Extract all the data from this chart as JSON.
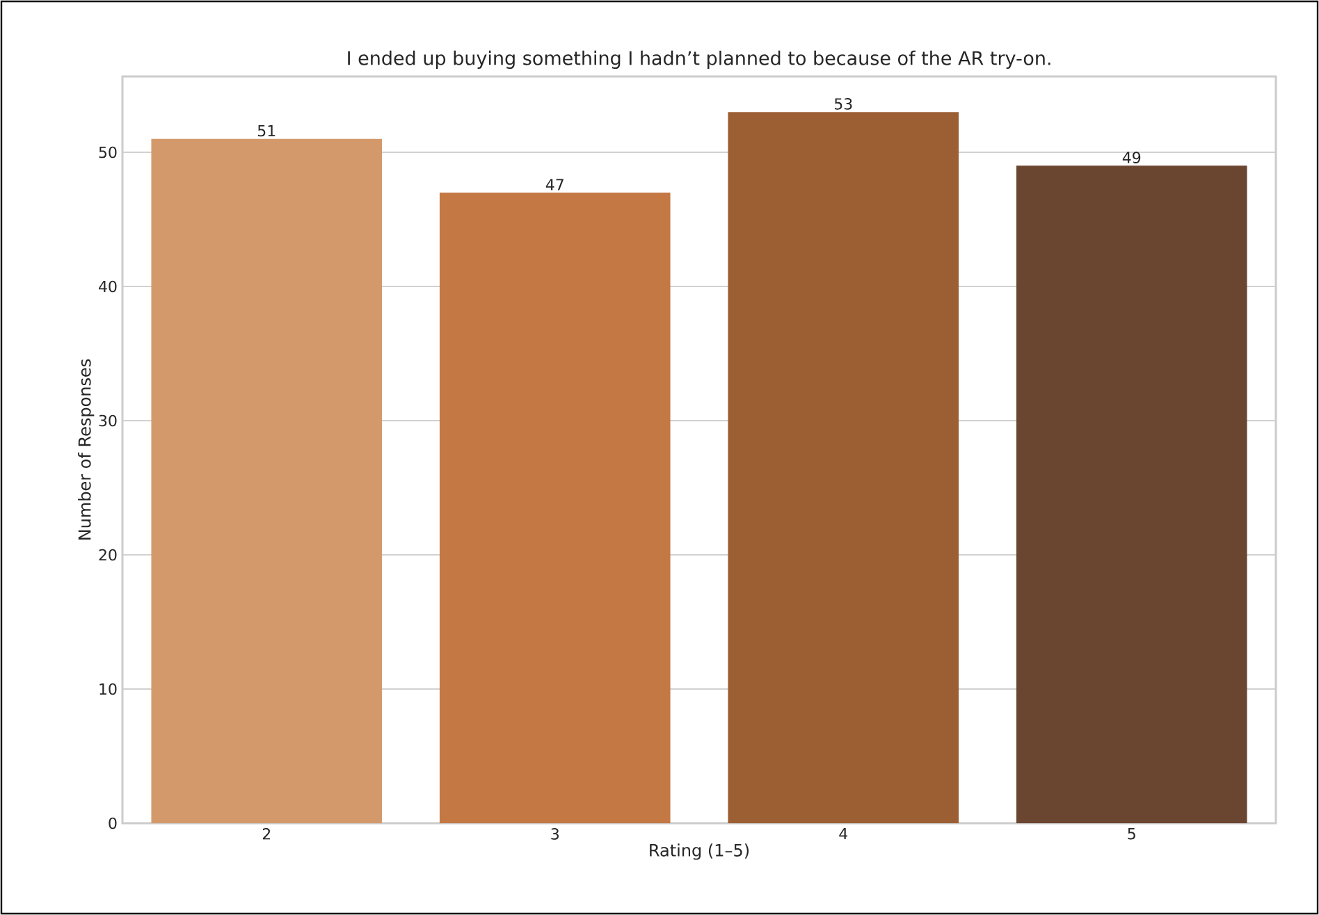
{
  "chart_data": {
    "type": "bar",
    "title": "I ended up buying something I hadn’t planned to because of the AR try-on.",
    "xlabel": "Rating (1–5)",
    "ylabel": "Number of Responses",
    "categories": [
      "2",
      "3",
      "4",
      "5"
    ],
    "values": [
      51,
      47,
      53,
      49
    ],
    "colors": [
      "#d4996a",
      "#c47844",
      "#9c5f33",
      "#6a4631"
    ],
    "ylim": [
      0,
      55.65
    ],
    "yticks": [
      0,
      10,
      20,
      30,
      40,
      50
    ],
    "grid": "y",
    "data_labels": true
  }
}
